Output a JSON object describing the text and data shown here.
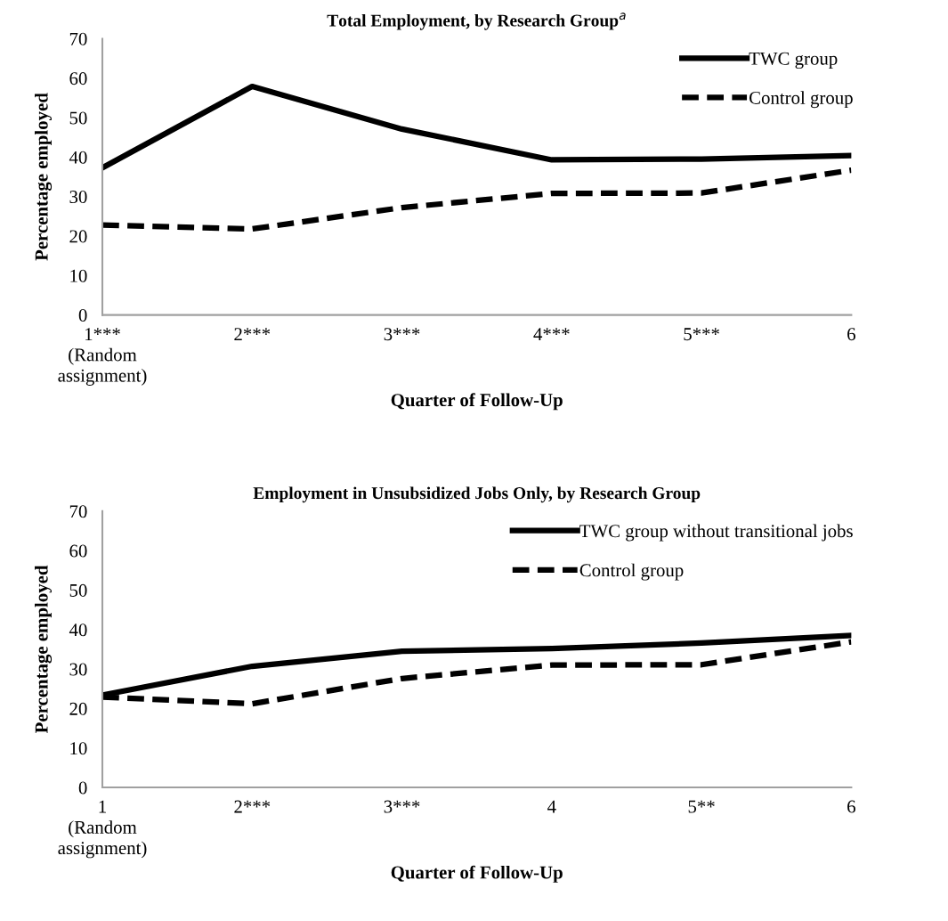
{
  "chart_data": [
    {
      "type": "line",
      "title": "Total Employment, by Research Group$^{a}$",
      "xlabel": "Quarter of Follow-Up",
      "ylabel": "Percentage employed",
      "categories": [
        "1***\n(Random\nassignment)",
        "2***",
        "3***",
        "4***",
        "5***",
        "6"
      ],
      "series": [
        {
          "name": "TWC group",
          "color": "#000000",
          "line_style": "solid",
          "values": [
            37.3,
            57.9,
            47.1,
            39.3,
            39.5,
            40.4
          ]
        },
        {
          "name": "Control group",
          "color": "#000000",
          "line_style": "dashed",
          "values": [
            22.8,
            21.8,
            27.2,
            30.8,
            30.9,
            36.7
          ]
        }
      ],
      "ylim": [
        0,
        70
      ],
      "yticks": [
        0,
        10,
        20,
        30,
        40,
        50,
        60,
        70
      ],
      "grid": false,
      "legend": "top right"
    },
    {
      "type": "line",
      "title": "Employment in Unsubsidized Jobs Only, by Research Group",
      "xlabel": "Quarter of Follow-Up",
      "ylabel": "Percentage employed",
      "categories": [
        "1\n(Random\nassignment)",
        "2***",
        "3***",
        "4",
        "5**",
        "6"
      ],
      "series": [
        {
          "name": "TWC group without transitional jobs",
          "color": "#000000",
          "line_style": "solid",
          "values": [
            23.4,
            30.7,
            34.5,
            35.2,
            36.6,
            38.5
          ]
        },
        {
          "name": "Control group",
          "color": "#000000",
          "line_style": "dashed",
          "values": [
            22.9,
            21.2,
            27.6,
            31.0,
            31.1,
            36.9
          ]
        }
      ],
      "ylim": [
        0,
        70
      ],
      "yticks": [
        0,
        10,
        20,
        30,
        40,
        50,
        60,
        70
      ],
      "grid": false,
      "legend": "top right"
    }
  ]
}
